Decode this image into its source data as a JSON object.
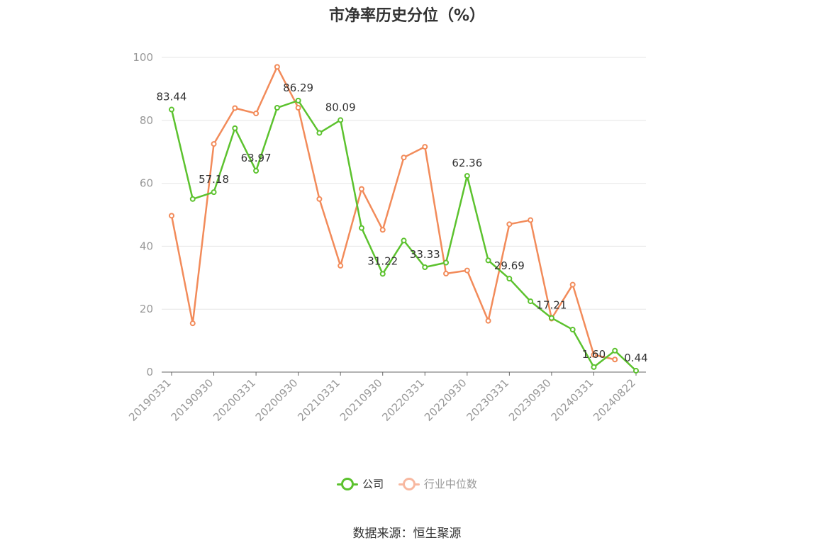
{
  "title": "市净率历史分位（%）",
  "source": "数据来源：恒生聚源",
  "colors": {
    "company": "#5cc22e",
    "industry": "#f28b5a",
    "industry_legend": "#f8b8a0",
    "grid": "#e6e6e6",
    "axis": "#666666",
    "tick_text": "#999999"
  },
  "chart_data": {
    "type": "line",
    "title": "市净率历史分位（%）",
    "ylim": [
      0,
      100
    ],
    "yticks": [
      0,
      20,
      40,
      60,
      80,
      100
    ],
    "grid": true,
    "legend_position": "bottom",
    "x_labels": [
      "20190331",
      "20190930",
      "20200331",
      "20200930",
      "20210331",
      "20210930",
      "20220331",
      "20220930",
      "20230331",
      "20230930",
      "20240331",
      "20240822"
    ],
    "x": [
      "20190331",
      "20190630",
      "20190930",
      "20191231",
      "20200331",
      "20200630",
      "20200930",
      "20201231",
      "20210331",
      "20210630",
      "20210930",
      "20211231",
      "20220331",
      "20220630",
      "20220930",
      "20221231",
      "20230331",
      "20230630",
      "20230930",
      "20231231",
      "20240331",
      "20240630",
      "20240822"
    ],
    "series": [
      {
        "name": "公司",
        "values": [
          83.44,
          55,
          57.18,
          77.5,
          63.97,
          84,
          86.29,
          76,
          80.09,
          45.8,
          31.22,
          41.8,
          33.33,
          34.8,
          62.36,
          35.5,
          29.69,
          22.5,
          17.21,
          13.5,
          1.6,
          6.8,
          0.44
        ],
        "labels": {
          "0": "83.44",
          "2": "57.18",
          "4": "63.97",
          "6": "86.29",
          "8": "80.09",
          "10": "31.22",
          "12": "33.33",
          "14": "62.36",
          "16": "29.69",
          "18": "17.21",
          "20": "1.60",
          "22": "0.44"
        }
      },
      {
        "name": "行业中位数",
        "values": [
          49.7,
          15.5,
          72.5,
          83.9,
          82.2,
          97,
          84,
          55,
          33.8,
          58.2,
          45.2,
          68.2,
          71.6,
          31.3,
          32.3,
          16.3,
          47,
          48.3,
          17,
          27.8,
          5.5,
          4,
          null
        ]
      }
    ]
  }
}
